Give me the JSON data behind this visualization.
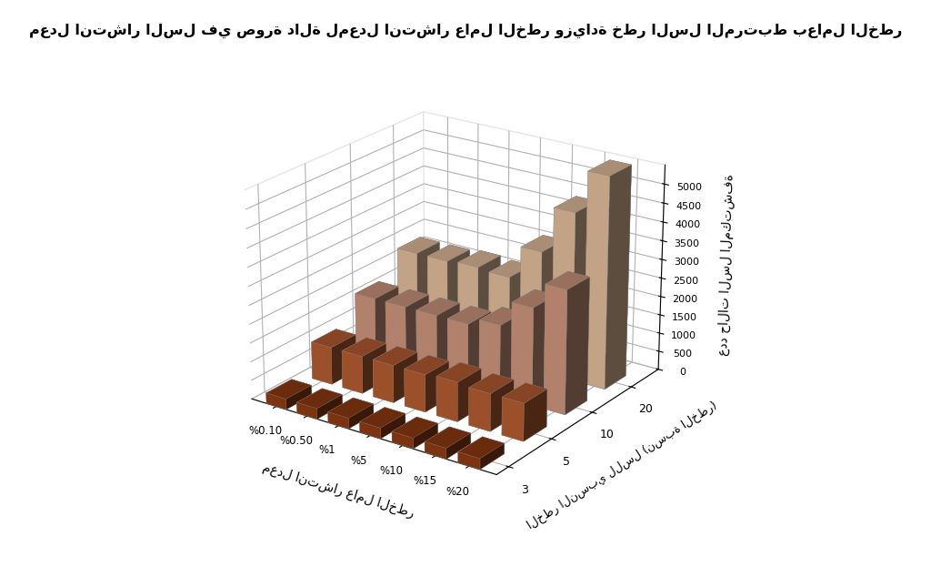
{
  "title": "معدل انتشار السل في صورة دالة لمعدل انتشار عامل الخطر وزيادة خطر السل المرتبط بعامل الخطر",
  "xlabel": "معدل انتشار عامل الخطر",
  "ylabel": "عدد حالات السل المكتشفة",
  "zlabel": "الخطر النسبي للسل (نسبة الخطر)",
  "x_labels": [
    "%0.10",
    "%0.50",
    "%1",
    "%5",
    "%10",
    "%15",
    "%20"
  ],
  "z_labels": [
    "3",
    "5",
    "10",
    "20"
  ],
  "background_color": "#ffffff",
  "data": [
    [
      280,
      280,
      280,
      280,
      280,
      280,
      280
    ],
    [
      1000,
      1000,
      1000,
      1000,
      1050,
      1000,
      1000
    ],
    [
      1700,
      1700,
      1700,
      1700,
      1900,
      2600,
      3300
    ],
    [
      2350,
      2350,
      2400,
      2350,
      3250,
      4500,
      5650
    ]
  ],
  "bar_colors": [
    "#8B3A12",
    "#B05A30",
    "#C8927A",
    "#DDB898"
  ],
  "bar_colors_side": [
    "#6B2A08",
    "#8B4020",
    "#A87060",
    "#C8A088"
  ],
  "bar_colors_top": [
    "#A04820",
    "#C06838",
    "#D8A888",
    "#E8C8A8"
  ],
  "ylim": [
    0,
    5500
  ],
  "yticks": [
    0,
    500,
    1000,
    1500,
    2000,
    2500,
    3000,
    3500,
    4000,
    4500,
    5000
  ],
  "elev": 22,
  "azim": -55
}
